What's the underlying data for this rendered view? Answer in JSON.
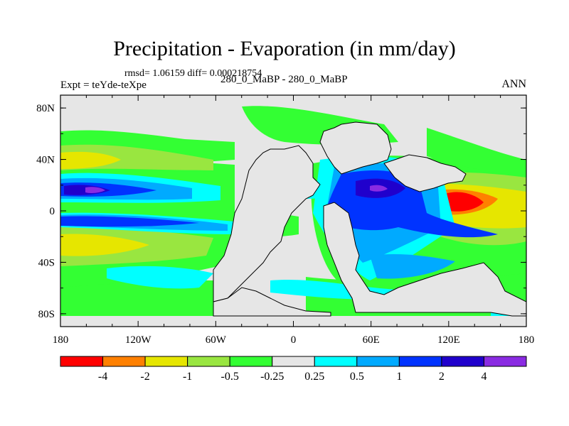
{
  "title": "Precipitation - Evaporation (in mm/day)",
  "stats": "rmsd= 1.06159 diff= 0.000218754",
  "expt": "Expt = teYde-teXpe",
  "subtitle": "280_0_MaBP - 280_0_MaBP",
  "season": "ANN",
  "map": {
    "x_ticks": [
      "180",
      "120W",
      "60W",
      "0",
      "60E",
      "120E",
      "180"
    ],
    "y_ticks": [
      "80N",
      "40N",
      "0",
      "40S",
      "80S"
    ],
    "land_color": "#e6e6e6",
    "coastline_color": "#000000"
  },
  "colorbar": {
    "colors": [
      "#ff0000",
      "#ff8000",
      "#e6e600",
      "#99e640",
      "#33ff33",
      "#e6e6e6",
      "#00ffff",
      "#00aaff",
      "#0033ff",
      "#2000cc",
      "#8a2be2"
    ],
    "labels": [
      "-4",
      "-2",
      "-1",
      "-0.5",
      "-0.25",
      "0.25",
      "0.5",
      "1",
      "2",
      "4"
    ]
  }
}
